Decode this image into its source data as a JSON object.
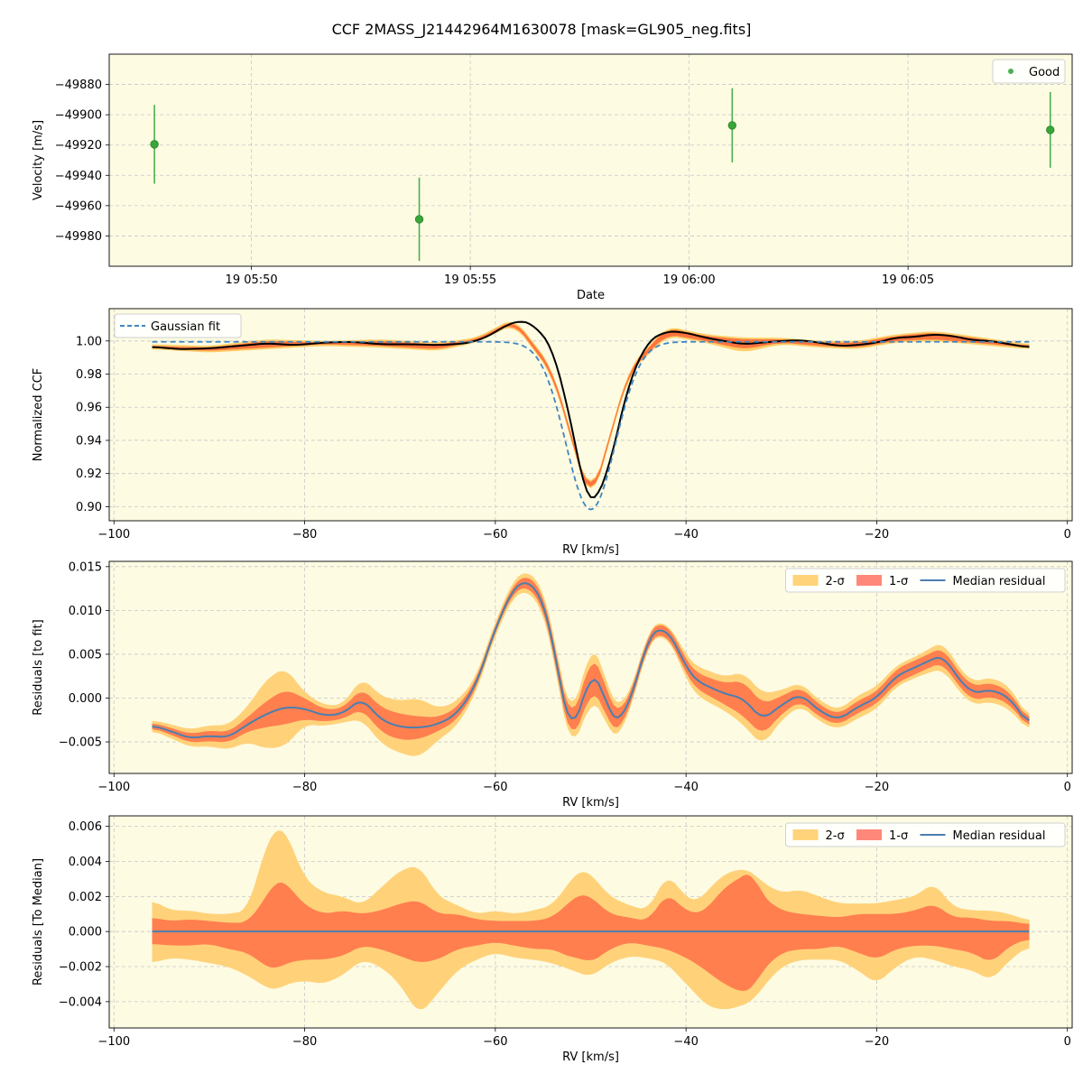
{
  "figure": {
    "title": "CCF 2MASS_J21442964M1630078 [mask=GL905_neg.fits]",
    "background": "#ffffff",
    "axes_background": "#fdfbe2",
    "grid_color": "#c8c8c8"
  },
  "chart_data": [
    {
      "type": "scatter",
      "title": "",
      "xlabel": "Date",
      "ylabel": "Velocity [m/s]",
      "x_is_time": true,
      "xlim": [
        "2024-05-19 05:46:45",
        "2024-05-19 06:08:45"
      ],
      "ylim": [
        -50000,
        -49860
      ],
      "xticks": [
        "19 05:50",
        "19 05:55",
        "19 06:00",
        "19 06:05"
      ],
      "xtick_values": [
        "2024-05-19 05:50:00",
        "2024-05-19 05:55:00",
        "2024-05-19 06:00:00",
        "2024-05-19 06:05:00"
      ],
      "yticks": [
        -49980,
        -49960,
        -49940,
        -49920,
        -49900,
        -49880
      ],
      "grid": true,
      "legend": {
        "position": "top-right",
        "entries": [
          {
            "label": "Good",
            "color": "#4caf50"
          }
        ]
      },
      "series": [
        {
          "name": "Good",
          "color": "#3aa63a",
          "points": [
            {
              "x": "2024-05-19 05:47:47",
              "y": -49919.5,
              "err": 26.0
            },
            {
              "x": "2024-05-19 05:53:50",
              "y": -49969.0,
              "err": 27.5
            },
            {
              "x": "2024-05-19 06:00:59",
              "y": -49907.0,
              "err": 24.5
            },
            {
              "x": "2024-05-19 06:08:15",
              "y": -49910.0,
              "err": 25.0
            }
          ]
        }
      ]
    },
    {
      "type": "line",
      "title": "",
      "xlabel": "RV [km/s]",
      "ylabel": "Normalized CCF",
      "xlim": [
        -100.5,
        0.5
      ],
      "ylim": [
        0.8915,
        1.0195
      ],
      "xticks": [
        -100,
        -80,
        -60,
        -40,
        -20,
        0
      ],
      "yticks": [
        0.9,
        0.92,
        0.94,
        0.96,
        0.98,
        1.0
      ],
      "grid": true,
      "legend": {
        "position": "top-left",
        "entries": [
          {
            "label": "Gaussian fit",
            "color": "#3f86c2",
            "style": "dashed"
          }
        ]
      },
      "bands": [
        {
          "color": "#ffc85a",
          "label": "2-σ",
          "x": [
            -96,
            -90,
            -84,
            -78,
            -72,
            -66,
            -62,
            -58,
            -54,
            -50,
            -46,
            -42,
            -38,
            -34,
            -30,
            -26,
            -22,
            -18,
            -14,
            -10,
            -4
          ],
          "low": [
            0.995,
            0.993,
            0.995,
            0.997,
            0.996,
            0.994,
            0.999,
            1.01,
            0.979,
            0.899,
            0.98,
            1.003,
            0.999,
            0.993,
            0.998,
            0.996,
            0.995,
            0.999,
            1.0,
            0.998,
            0.995
          ],
          "high": [
            0.998,
            0.997,
            1.001,
            1.0,
            1.001,
            0.999,
            1.002,
            1.014,
            0.984,
            0.904,
            0.984,
            1.009,
            1.004,
            1.002,
            1.002,
            1.0,
            1.0,
            1.004,
            1.006,
            1.003,
            0.998
          ]
        },
        {
          "color": "#ff6a3a",
          "label": "1-σ",
          "x": [
            -96,
            -90,
            -84,
            -78,
            -72,
            -66,
            -62,
            -58,
            -54,
            -50,
            -46,
            -42,
            -38,
            -34,
            -30,
            -26,
            -22,
            -18,
            -14,
            -10,
            -4
          ],
          "low": [
            0.996,
            0.994,
            0.996,
            0.998,
            0.997,
            0.995,
            1.0,
            1.011,
            0.98,
            0.9,
            0.981,
            1.004,
            1.0,
            0.995,
            0.999,
            0.997,
            0.996,
            1.0,
            1.001,
            0.999,
            0.996
          ],
          "high": [
            0.997,
            0.996,
            1.0,
            0.999,
            1.0,
            0.998,
            1.001,
            1.013,
            0.983,
            0.903,
            0.983,
            1.008,
            1.003,
            1.001,
            1.001,
            0.999,
            0.999,
            1.003,
            1.005,
            1.002,
            0.997
          ]
        }
      ],
      "series": [
        {
          "name": "",
          "color": "#000000",
          "x": [
            -96,
            -93,
            -90,
            -87,
            -84,
            -81,
            -78,
            -75,
            -72,
            -69,
            -66,
            -63,
            -61,
            -59,
            -57.5,
            -56,
            -54,
            -52,
            -50.5,
            -49.5,
            -48,
            -46,
            -44,
            -42,
            -40,
            -38,
            -36,
            -34,
            -32,
            -30,
            -28,
            -26,
            -24,
            -22,
            -20,
            -18,
            -16,
            -14,
            -12,
            -10,
            -8,
            -6,
            -4
          ],
          "y": [
            0.9965,
            0.995,
            0.9955,
            0.997,
            0.9985,
            0.9975,
            0.999,
            0.9995,
            0.998,
            0.998,
            0.9975,
            0.9985,
            1.002,
            1.009,
            1.0125,
            1.01,
            0.996,
            0.95,
            0.904,
            0.902,
            0.925,
            0.975,
            1.0,
            1.006,
            1.005,
            1.002,
            1.0,
            0.998,
            0.999,
            1.0,
            1.0005,
            0.999,
            0.997,
            0.9975,
            0.999,
            1.002,
            1.0025,
            1.004,
            1.003,
            1.0005,
            1.0,
            0.998,
            0.996
          ]
        },
        {
          "name": "Gaussian fit",
          "color": "#3f86c2",
          "dashed": true,
          "gaussian": {
            "amplitude": -0.1012,
            "center": -50.0,
            "sigma": 2.6,
            "offset": 0.9995
          }
        }
      ]
    },
    {
      "type": "area",
      "title": "",
      "xlabel": "RV [km/s]",
      "ylabel": "Residuals [to fit]",
      "xlim": [
        -100.5,
        0.5
      ],
      "ylim": [
        -0.0086,
        0.0156
      ],
      "xticks": [
        -100,
        -80,
        -60,
        -40,
        -20,
        0
      ],
      "yticks": [
        -0.005,
        0.0,
        0.005,
        0.01,
        0.015
      ],
      "ytick_labels": [
        "−0.005",
        "0.000",
        "0.005",
        "0.010",
        "0.015"
      ],
      "grid": true,
      "legend": {
        "position": "top-right",
        "entries": [
          {
            "label": "2-σ",
            "color": "#ffc85a",
            "kind": "patch"
          },
          {
            "label": "1-σ",
            "color": "#ff6a5a",
            "kind": "patch"
          },
          {
            "label": "Median residual",
            "color": "#4a7fb0",
            "kind": "line"
          }
        ]
      },
      "x": [
        -96,
        -94,
        -92,
        -90,
        -88,
        -86,
        -84,
        -82,
        -80,
        -78,
        -76,
        -74,
        -72,
        -70,
        -68,
        -66,
        -64,
        -62,
        -60,
        -58,
        -57,
        -56,
        -55,
        -54,
        -53,
        -52,
        -51,
        -50,
        -49,
        -48,
        -47,
        -46,
        -45,
        -44,
        -43,
        -42,
        -41,
        -40,
        -39,
        -38,
        -36,
        -34,
        -32,
        -30,
        -28,
        -26,
        -24,
        -22,
        -20,
        -18,
        -16,
        -14,
        -13,
        -12,
        -10,
        -8,
        -6,
        -4
      ],
      "median": [
        -0.0031,
        -0.0038,
        -0.0046,
        -0.0043,
        -0.0045,
        -0.003,
        -0.0018,
        -0.001,
        -0.0012,
        -0.002,
        -0.0018,
        0.0,
        -0.0025,
        -0.0033,
        -0.0034,
        -0.003,
        -0.0018,
        0.0015,
        0.008,
        0.0128,
        0.0133,
        0.013,
        0.011,
        0.007,
        0.0,
        -0.004,
        -0.001,
        0.003,
        0.002,
        -0.002,
        -0.003,
        -0.0005,
        0.0025,
        0.007,
        0.0079,
        0.0078,
        0.006,
        0.0035,
        0.002,
        0.0015,
        0.0005,
        0.0,
        -0.0025,
        -0.0008,
        0.0005,
        -0.0015,
        -0.0025,
        -0.001,
        0.0,
        0.0025,
        0.0035,
        0.0045,
        0.005,
        0.003,
        0.0005,
        0.001,
        0.0,
        -0.0032
      ],
      "band1_halfwidth": [
        0.0003,
        0.0004,
        0.0005,
        0.0006,
        0.0006,
        0.0008,
        0.0015,
        0.002,
        0.0012,
        0.0007,
        0.0006,
        0.0012,
        0.0014,
        0.0015,
        0.0013,
        0.0008,
        0.0007,
        0.0005,
        0.0004,
        0.0005,
        0.0006,
        0.0007,
        0.0008,
        0.0008,
        0.001,
        0.0012,
        0.0015,
        0.002,
        0.0018,
        0.0014,
        0.001,
        0.0007,
        0.0006,
        0.0006,
        0.0006,
        0.0006,
        0.0007,
        0.0008,
        0.0009,
        0.001,
        0.0012,
        0.002,
        0.0018,
        0.001,
        0.0008,
        0.0007,
        0.0006,
        0.0007,
        0.0007,
        0.0008,
        0.0008,
        0.0008,
        0.0009,
        0.0008,
        0.0008,
        0.0008,
        0.0007,
        0.0004
      ],
      "band2_halfwidth": [
        0.0006,
        0.0008,
        0.001,
        0.0012,
        0.0014,
        0.002,
        0.004,
        0.0045,
        0.0018,
        0.0012,
        0.001,
        0.0024,
        0.0027,
        0.003,
        0.0034,
        0.0018,
        0.0014,
        0.0009,
        0.0008,
        0.001,
        0.0011,
        0.0012,
        0.0013,
        0.0014,
        0.0016,
        0.0019,
        0.0025,
        0.0032,
        0.0028,
        0.0022,
        0.0017,
        0.0011,
        0.0009,
        0.0008,
        0.0008,
        0.0008,
        0.001,
        0.0014,
        0.0016,
        0.0018,
        0.0019,
        0.003,
        0.003,
        0.0017,
        0.0013,
        0.0012,
        0.0011,
        0.0013,
        0.0013,
        0.0012,
        0.0012,
        0.0014,
        0.0016,
        0.0014,
        0.0013,
        0.0014,
        0.0013,
        0.0007
      ],
      "series": [
        {
          "name": "Median residual",
          "color": "#4a7fb0"
        }
      ]
    },
    {
      "type": "area",
      "title": "",
      "xlabel": "RV [km/s]",
      "ylabel": "Residuals [To Median]",
      "xlim": [
        -100.5,
        0.5
      ],
      "ylim": [
        -0.0055,
        0.0066
      ],
      "xticks": [
        -100,
        -80,
        -60,
        -40,
        -20,
        0
      ],
      "yticks": [
        -0.004,
        -0.002,
        0.0,
        0.002,
        0.004,
        0.006
      ],
      "ytick_labels": [
        "−0.004",
        "−0.002",
        "0.000",
        "0.002",
        "0.004",
        "0.006"
      ],
      "grid": true,
      "legend": {
        "position": "top-right",
        "entries": [
          {
            "label": "2-σ",
            "color": "#ffc85a",
            "kind": "patch"
          },
          {
            "label": "1-σ",
            "color": "#ff6a5a",
            "kind": "patch"
          },
          {
            "label": "Median residual",
            "color": "#4a7fb0",
            "kind": "line"
          }
        ]
      },
      "x": [
        -96,
        -94,
        -92,
        -90,
        -88,
        -86,
        -84,
        -83,
        -82,
        -80,
        -78,
        -76,
        -74,
        -72,
        -70,
        -68,
        -66,
        -64,
        -62,
        -60,
        -58,
        -56,
        -54,
        -52,
        -51,
        -50,
        -48,
        -46,
        -44,
        -42,
        -40,
        -39,
        -38,
        -36,
        -34,
        -33,
        -32,
        -30,
        -28,
        -26,
        -24,
        -22,
        -20,
        -18,
        -16,
        -14,
        -12,
        -10,
        -8,
        -6,
        -4
      ],
      "median": [
        0,
        0,
        0,
        0,
        0,
        0,
        0,
        0,
        0,
        0,
        0,
        0,
        0,
        0,
        0,
        0,
        0,
        0,
        0,
        0,
        0,
        0,
        0,
        0,
        0,
        0,
        0,
        0,
        0,
        0,
        0,
        0,
        0,
        0,
        0,
        0,
        0,
        0,
        0,
        0,
        0,
        0,
        0,
        0,
        0,
        0,
        0,
        0,
        0,
        0,
        0
      ],
      "band1_upper": [
        0.0008,
        0.0006,
        0.0007,
        0.0006,
        0.0005,
        0.0005,
        0.002,
        0.003,
        0.0028,
        0.0015,
        0.001,
        0.0012,
        0.001,
        0.0012,
        0.0016,
        0.0018,
        0.001,
        0.001,
        0.0007,
        0.0006,
        0.0006,
        0.0006,
        0.0008,
        0.0018,
        0.0022,
        0.002,
        0.001,
        0.0008,
        0.0006,
        0.0022,
        0.0012,
        0.001,
        0.0012,
        0.0025,
        0.0032,
        0.0035,
        0.002,
        0.0012,
        0.001,
        0.0009,
        0.0008,
        0.001,
        0.001,
        0.001,
        0.0012,
        0.0016,
        0.0008,
        0.0008,
        0.0006,
        0.0006,
        0.0004
      ],
      "band1_lower": [
        -0.0007,
        -0.0008,
        -0.0008,
        -0.0007,
        -0.001,
        -0.0012,
        -0.002,
        -0.0022,
        -0.0018,
        -0.0016,
        -0.0016,
        -0.0014,
        -0.0008,
        -0.001,
        -0.0014,
        -0.0018,
        -0.0016,
        -0.001,
        -0.0008,
        -0.0006,
        -0.0008,
        -0.001,
        -0.001,
        -0.0015,
        -0.0015,
        -0.0018,
        -0.001,
        -0.0006,
        -0.0008,
        -0.001,
        -0.0015,
        -0.0018,
        -0.0022,
        -0.003,
        -0.0035,
        -0.0033,
        -0.0022,
        -0.0012,
        -0.001,
        -0.001,
        -0.0008,
        -0.0012,
        -0.0016,
        -0.001,
        -0.0008,
        -0.0008,
        -0.001,
        -0.0012,
        -0.0018,
        -0.0008,
        -0.0004
      ],
      "band2_upper": [
        0.0018,
        0.0012,
        0.0012,
        0.001,
        0.001,
        0.0012,
        0.005,
        0.006,
        0.0058,
        0.003,
        0.0022,
        0.002,
        0.0015,
        0.0025,
        0.0035,
        0.0038,
        0.002,
        0.0015,
        0.001,
        0.0012,
        0.001,
        0.0012,
        0.0015,
        0.003,
        0.0036,
        0.0033,
        0.002,
        0.0015,
        0.0012,
        0.0033,
        0.002,
        0.0016,
        0.0022,
        0.0033,
        0.0036,
        0.0034,
        0.0028,
        0.0022,
        0.0024,
        0.002,
        0.0016,
        0.0016,
        0.0016,
        0.0018,
        0.002,
        0.0028,
        0.0014,
        0.0012,
        0.0012,
        0.001,
        0.0006
      ],
      "band2_lower": [
        -0.0018,
        -0.0015,
        -0.0016,
        -0.0018,
        -0.002,
        -0.0025,
        -0.0032,
        -0.0034,
        -0.003,
        -0.0028,
        -0.003,
        -0.0025,
        -0.0016,
        -0.002,
        -0.003,
        -0.0048,
        -0.0035,
        -0.0022,
        -0.0016,
        -0.0012,
        -0.0015,
        -0.0016,
        -0.0018,
        -0.0022,
        -0.0024,
        -0.0026,
        -0.0018,
        -0.0014,
        -0.0015,
        -0.0018,
        -0.003,
        -0.0035,
        -0.0042,
        -0.0045,
        -0.0042,
        -0.004,
        -0.0032,
        -0.002,
        -0.0016,
        -0.0016,
        -0.0016,
        -0.0022,
        -0.003,
        -0.002,
        -0.0014,
        -0.0016,
        -0.002,
        -0.0022,
        -0.0028,
        -0.0016,
        -0.0008
      ],
      "series": [
        {
          "name": "Median residual",
          "color": "#4a7fb0"
        }
      ]
    }
  ]
}
